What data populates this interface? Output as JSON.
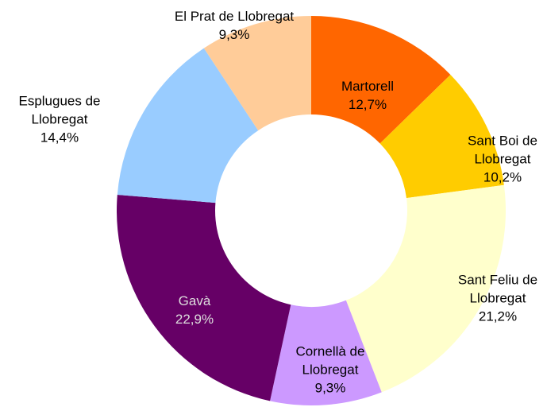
{
  "chart_data": {
    "type": "donut",
    "categories": [
      "Martorell",
      "Sant Boi de Llobregat",
      "Sant Feliu de Llobregat",
      "Cornellà de Llobregat",
      "Gavà",
      "Esplugues de Llobregat",
      "El Prat de Llobregat"
    ],
    "values": [
      12.7,
      10.2,
      21.2,
      9.3,
      22.9,
      14.4,
      9.3
    ],
    "value_labels": [
      "12,7%",
      "10,2%",
      "21,2%",
      "9,3%",
      "22,9%",
      "14,4%",
      "9,3%"
    ],
    "colors": [
      "#ff6600",
      "#ffcc00",
      "#ffffcc",
      "#cc99ff",
      "#660066",
      "#99ccff",
      "#ffcc99"
    ]
  }
}
